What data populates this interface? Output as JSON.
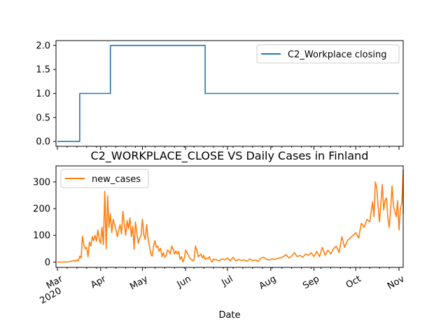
{
  "chart_data": [
    {
      "type": "line",
      "title": "",
      "xlabel": "",
      "ylabel": "",
      "ylim": [
        -0.1,
        2.1
      ],
      "xlim": [
        "2020-03-01",
        "2020-11-01"
      ],
      "yticks": [
        "0.0",
        "0.5",
        "1.0",
        "1.5",
        "2.0"
      ],
      "ytick_values": [
        0,
        0.5,
        1,
        1.5,
        2
      ],
      "legend": "top-right",
      "series": [
        {
          "name": "C2_Workplace closing",
          "color": "#1f77b4",
          "step": true,
          "points": [
            [
              "2020-03-01",
              0
            ],
            [
              "2020-03-16",
              0
            ],
            [
              "2020-03-17",
              1
            ],
            [
              "2020-04-07",
              1
            ],
            [
              "2020-04-08",
              2
            ],
            [
              "2020-06-14",
              2
            ],
            [
              "2020-06-15",
              1
            ],
            [
              "2020-11-01",
              1
            ]
          ]
        }
      ]
    },
    {
      "type": "line",
      "title": "C2_WORKPLACE_CLOSE VS Daily Cases in Finland",
      "xlabel": "Date",
      "ylabel": "",
      "ylim": [
        -20,
        360
      ],
      "xlim": [
        "2020-03-01",
        "2020-11-01"
      ],
      "yticks": [
        "0",
        "100",
        "200",
        "300"
      ],
      "ytick_values": [
        0,
        100,
        200,
        300
      ],
      "xticks": [
        "2020-03-01",
        "2020-04-01",
        "2020-05-01",
        "2020-06-01",
        "2020-07-01",
        "2020-08-01",
        "2020-09-01",
        "2020-10-01",
        "2020-11-01"
      ],
      "xtick_labels": [
        "Mar\n2020",
        "Apr",
        "May",
        "Jun",
        "Jul",
        "Aug",
        "Sep",
        "Oct",
        "Nov"
      ],
      "legend": "top-left",
      "series": [
        {
          "name": "new_cases",
          "color": "#ff7f0e",
          "points": [
            [
              "2020-03-01",
              0
            ],
            [
              "2020-03-05",
              0
            ],
            [
              "2020-03-09",
              1
            ],
            [
              "2020-03-11",
              3
            ],
            [
              "2020-03-13",
              6
            ],
            [
              "2020-03-14",
              2
            ],
            [
              "2020-03-15",
              8
            ],
            [
              "2020-03-16",
              5
            ],
            [
              "2020-03-17",
              22
            ],
            [
              "2020-03-18",
              15
            ],
            [
              "2020-03-19",
              97
            ],
            [
              "2020-03-20",
              65
            ],
            [
              "2020-03-21",
              50
            ],
            [
              "2020-03-22",
              55
            ],
            [
              "2020-03-23",
              20
            ],
            [
              "2020-03-24",
              75
            ],
            [
              "2020-03-25",
              60
            ],
            [
              "2020-03-26",
              95
            ],
            [
              "2020-03-27",
              80
            ],
            [
              "2020-03-28",
              100
            ],
            [
              "2020-03-29",
              78
            ],
            [
              "2020-03-30",
              120
            ],
            [
              "2020-03-31",
              85
            ],
            [
              "2020-04-01",
              70
            ],
            [
              "2020-04-02",
              130
            ],
            [
              "2020-04-03",
              65
            ],
            [
              "2020-04-04",
              265
            ],
            [
              "2020-04-05",
              50
            ],
            [
              "2020-04-06",
              248
            ],
            [
              "2020-04-07",
              130
            ],
            [
              "2020-04-08",
              180
            ],
            [
              "2020-04-09",
              110
            ],
            [
              "2020-04-10",
              160
            ],
            [
              "2020-04-11",
              140
            ],
            [
              "2020-04-12",
              120
            ],
            [
              "2020-04-13",
              95
            ],
            [
              "2020-04-14",
              120
            ],
            [
              "2020-04-15",
              140
            ],
            [
              "2020-04-16",
              105
            ],
            [
              "2020-04-17",
              190
            ],
            [
              "2020-04-18",
              140
            ],
            [
              "2020-04-19",
              100
            ],
            [
              "2020-04-20",
              155
            ],
            [
              "2020-04-21",
              125
            ],
            [
              "2020-04-22",
              165
            ],
            [
              "2020-04-23",
              95
            ],
            [
              "2020-04-24",
              135
            ],
            [
              "2020-04-25",
              48
            ],
            [
              "2020-04-26",
              150
            ],
            [
              "2020-04-27",
              110
            ],
            [
              "2020-04-28",
              70
            ],
            [
              "2020-04-29",
              90
            ],
            [
              "2020-04-30",
              100
            ],
            [
              "2020-05-01",
              160
            ],
            [
              "2020-05-02",
              100
            ],
            [
              "2020-05-03",
              85
            ],
            [
              "2020-05-04",
              140
            ],
            [
              "2020-05-05",
              90
            ],
            [
              "2020-05-06",
              60
            ],
            [
              "2020-05-07",
              30
            ],
            [
              "2020-05-08",
              22
            ],
            [
              "2020-05-09",
              60
            ],
            [
              "2020-05-10",
              80
            ],
            [
              "2020-05-11",
              55
            ],
            [
              "2020-05-12",
              60
            ],
            [
              "2020-05-13",
              40
            ],
            [
              "2020-05-14",
              52
            ],
            [
              "2020-05-15",
              20
            ],
            [
              "2020-05-16",
              35
            ],
            [
              "2020-05-17",
              18
            ],
            [
              "2020-05-18",
              25
            ],
            [
              "2020-05-19",
              45
            ],
            [
              "2020-05-20",
              40
            ],
            [
              "2020-05-21",
              30
            ],
            [
              "2020-05-22",
              60
            ],
            [
              "2020-05-23",
              48
            ],
            [
              "2020-05-24",
              30
            ],
            [
              "2020-05-25",
              42
            ],
            [
              "2020-05-26",
              30
            ],
            [
              "2020-05-27",
              40
            ],
            [
              "2020-05-28",
              10
            ],
            [
              "2020-05-29",
              20
            ],
            [
              "2020-05-30",
              0
            ],
            [
              "2020-05-31",
              15
            ],
            [
              "2020-06-01",
              45
            ],
            [
              "2020-06-02",
              35
            ],
            [
              "2020-06-03",
              25
            ],
            [
              "2020-06-04",
              15
            ],
            [
              "2020-06-05",
              10
            ],
            [
              "2020-06-06",
              5
            ],
            [
              "2020-06-07",
              8
            ],
            [
              "2020-06-08",
              60
            ],
            [
              "2020-06-09",
              45
            ],
            [
              "2020-06-10",
              20
            ],
            [
              "2020-06-11",
              25
            ],
            [
              "2020-06-12",
              30
            ],
            [
              "2020-06-13",
              15
            ],
            [
              "2020-06-14",
              25
            ],
            [
              "2020-06-15",
              10
            ],
            [
              "2020-06-16",
              15
            ],
            [
              "2020-06-17",
              12
            ],
            [
              "2020-06-18",
              20
            ],
            [
              "2020-06-19",
              8
            ],
            [
              "2020-06-20",
              0
            ],
            [
              "2020-06-21",
              12
            ],
            [
              "2020-06-22",
              8
            ],
            [
              "2020-06-23",
              10
            ],
            [
              "2020-06-24",
              6
            ],
            [
              "2020-06-25",
              5
            ],
            [
              "2020-06-27",
              12
            ],
            [
              "2020-06-29",
              8
            ],
            [
              "2020-07-01",
              15
            ],
            [
              "2020-07-03",
              5
            ],
            [
              "2020-07-05",
              18
            ],
            [
              "2020-07-07",
              4
            ],
            [
              "2020-07-09",
              10
            ],
            [
              "2020-07-11",
              6
            ],
            [
              "2020-07-13",
              8
            ],
            [
              "2020-07-15",
              3
            ],
            [
              "2020-07-17",
              12
            ],
            [
              "2020-07-19",
              5
            ],
            [
              "2020-07-21",
              8
            ],
            [
              "2020-07-23",
              2
            ],
            [
              "2020-07-25",
              15
            ],
            [
              "2020-07-27",
              18
            ],
            [
              "2020-07-29",
              10
            ],
            [
              "2020-07-31",
              8
            ],
            [
              "2020-08-02",
              12
            ],
            [
              "2020-08-04",
              10
            ],
            [
              "2020-08-06",
              14
            ],
            [
              "2020-08-08",
              15
            ],
            [
              "2020-08-10",
              20
            ],
            [
              "2020-08-12",
              28
            ],
            [
              "2020-08-14",
              15
            ],
            [
              "2020-08-16",
              22
            ],
            [
              "2020-08-18",
              35
            ],
            [
              "2020-08-20",
              20
            ],
            [
              "2020-08-22",
              25
            ],
            [
              "2020-08-24",
              18
            ],
            [
              "2020-08-26",
              30
            ],
            [
              "2020-08-28",
              25
            ],
            [
              "2020-08-30",
              35
            ],
            [
              "2020-09-01",
              20
            ],
            [
              "2020-09-03",
              40
            ],
            [
              "2020-09-05",
              20
            ],
            [
              "2020-09-07",
              55
            ],
            [
              "2020-09-09",
              25
            ],
            [
              "2020-09-11",
              45
            ],
            [
              "2020-09-13",
              30
            ],
            [
              "2020-09-15",
              50
            ],
            [
              "2020-09-17",
              60
            ],
            [
              "2020-09-19",
              35
            ],
            [
              "2020-09-21",
              95
            ],
            [
              "2020-09-23",
              55
            ],
            [
              "2020-09-25",
              80
            ],
            [
              "2020-09-27",
              90
            ],
            [
              "2020-09-29",
              100
            ],
            [
              "2020-10-01",
              110
            ],
            [
              "2020-10-03",
              90
            ],
            [
              "2020-10-05",
              145
            ],
            [
              "2020-10-07",
              130
            ],
            [
              "2020-10-09",
              160
            ],
            [
              "2020-10-11",
              150
            ],
            [
              "2020-10-13",
              225
            ],
            [
              "2020-10-14",
              170
            ],
            [
              "2020-10-15",
              300
            ],
            [
              "2020-10-16",
              280
            ],
            [
              "2020-10-17",
              210
            ],
            [
              "2020-10-18",
              150
            ],
            [
              "2020-10-19",
              220
            ],
            [
              "2020-10-20",
              290
            ],
            [
              "2020-10-21",
              195
            ],
            [
              "2020-10-22",
              230
            ],
            [
              "2020-10-23",
              240
            ],
            [
              "2020-10-24",
              165
            ],
            [
              "2020-10-25",
              130
            ],
            [
              "2020-10-26",
              200
            ],
            [
              "2020-10-27",
              285
            ],
            [
              "2020-10-28",
              210
            ],
            [
              "2020-10-29",
              190
            ],
            [
              "2020-10-30",
              170
            ],
            [
              "2020-10-31",
              230
            ],
            [
              "2020-11-01",
              120
            ],
            [
              "2020-11-02",
              200
            ],
            [
              "2020-11-03",
              220
            ],
            [
              "2020-11-04",
              345
            ],
            [
              "2020-11-05",
              180
            ]
          ]
        }
      ]
    }
  ]
}
